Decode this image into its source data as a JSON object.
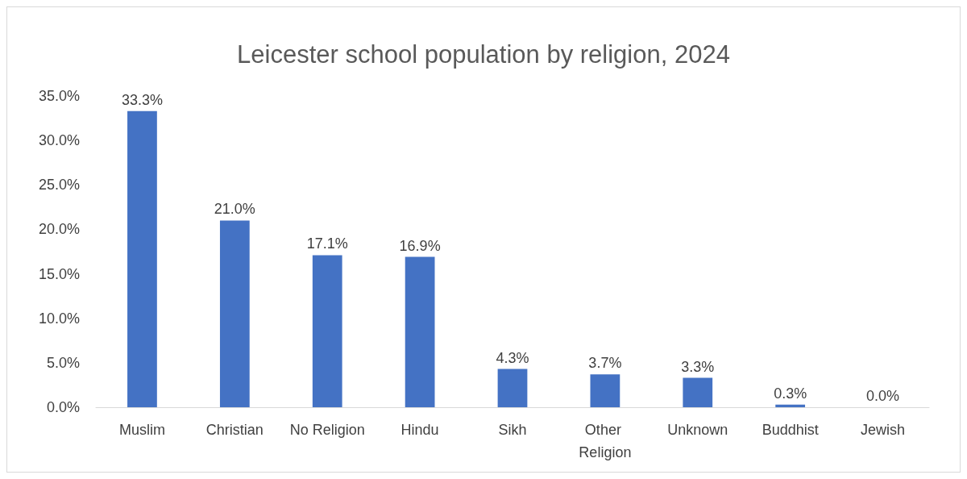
{
  "chart_data": {
    "type": "bar",
    "title": "Leicester school population by religion, 2024",
    "categories": [
      "Muslim",
      "Christian",
      "No Religion",
      "Hindu",
      "Sikh",
      "Other Religion",
      "Unknown",
      "Buddhist",
      "Jewish"
    ],
    "values": [
      33.3,
      21.0,
      17.1,
      16.9,
      4.3,
      3.7,
      3.3,
      0.3,
      0.0
    ],
    "value_labels": [
      "33.3%",
      "21.0%",
      "17.1%",
      "16.9%",
      "4.3%",
      "3.7%",
      "3.3%",
      "0.3%",
      "0.0%"
    ],
    "color": "#4472c4",
    "ylim": [
      0,
      35
    ],
    "yticks": [
      {
        "value": 0,
        "label": "0.0%"
      },
      {
        "value": 5,
        "label": "5.0%"
      },
      {
        "value": 10,
        "label": "10.0%"
      },
      {
        "value": 15,
        "label": "15.0%"
      },
      {
        "value": 20,
        "label": "20.0%"
      },
      {
        "value": 25,
        "label": "25.0%"
      },
      {
        "value": 30,
        "label": "30.0%"
      },
      {
        "value": 35,
        "label": "35.0%"
      }
    ],
    "grid": false
  }
}
